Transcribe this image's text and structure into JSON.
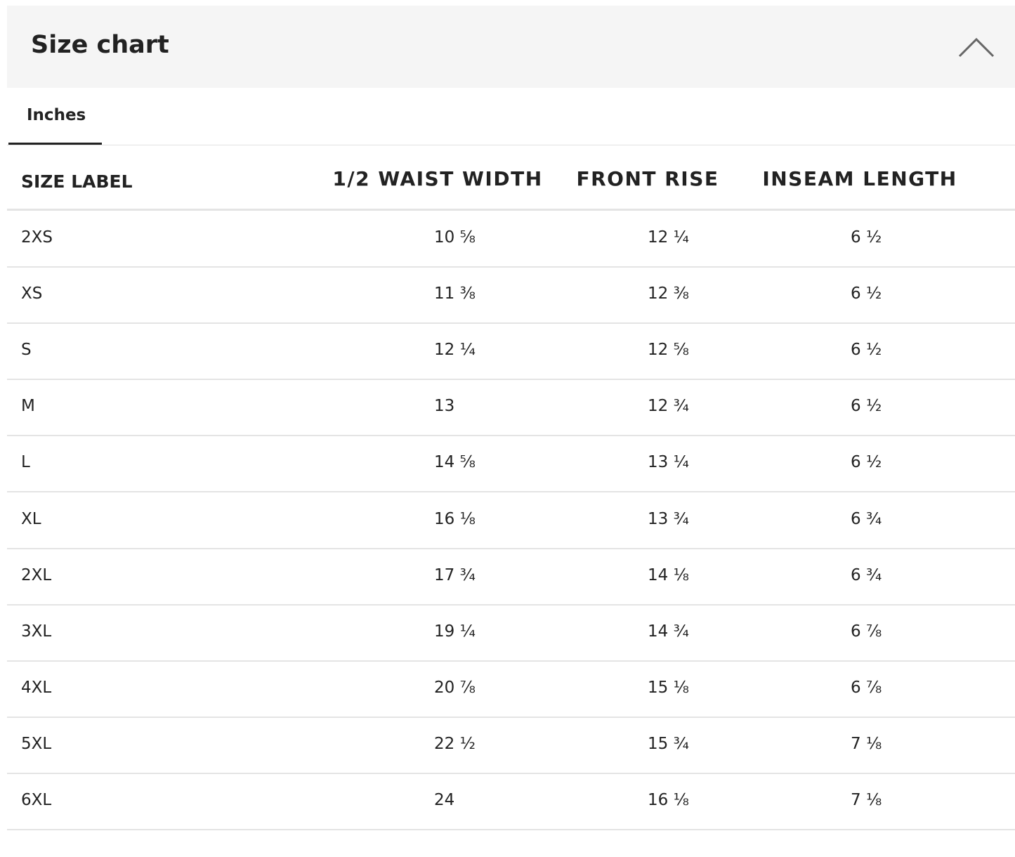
{
  "header": {
    "title": "Size chart"
  },
  "tab": {
    "label": "Inches"
  },
  "table": {
    "columns": [
      "SIZE LABEL",
      "1/2 WAIST WIDTH",
      "FRONT RISE",
      "INSEAM LENGTH"
    ],
    "rows": [
      [
        "2XS",
        "10 ⅝",
        "12 ¼",
        "6 ½"
      ],
      [
        "XS",
        "11 ⅜",
        "12 ⅜",
        "6 ½"
      ],
      [
        "S",
        "12 ¼",
        "12 ⅝",
        "6 ½"
      ],
      [
        "M",
        "13",
        "12 ¾",
        "6 ½"
      ],
      [
        "L",
        "14 ⅝",
        "13 ¼",
        "6 ½"
      ],
      [
        "XL",
        "16 ⅛",
        "13 ¾",
        "6 ¾"
      ],
      [
        "2XL",
        "17 ¾",
        "14 ⅛",
        "6 ¾"
      ],
      [
        "3XL",
        "19 ¼",
        "14 ¾",
        "6 ⅞"
      ],
      [
        "4XL",
        "20 ⅞",
        "15 ⅛",
        "6 ⅞"
      ],
      [
        "5XL",
        "22 ½",
        "15 ¾",
        "7 ⅛"
      ],
      [
        "6XL",
        "24",
        "16 ⅛",
        "7 ⅛"
      ]
    ]
  }
}
